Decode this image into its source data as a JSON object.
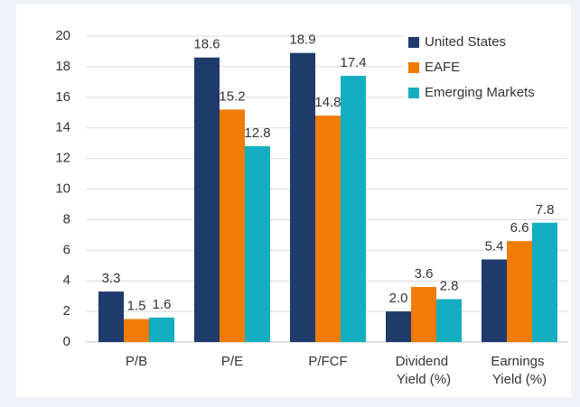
{
  "chart_data": {
    "type": "bar",
    "categories": [
      "P/B",
      "P/E",
      "P/FCF",
      "Dividend Yield (%)",
      "Earnings Yield (%)"
    ],
    "series": [
      {
        "name": "United States",
        "color": "#1f3b6b",
        "values": [
          3.3,
          18.6,
          18.9,
          2.0,
          5.4
        ],
        "value_labels": [
          "3.3",
          "18.6",
          "18.9",
          "2.0",
          "5.4"
        ]
      },
      {
        "name": "EAFE",
        "color": "#f07b05",
        "values": [
          1.5,
          15.2,
          14.8,
          3.6,
          6.6
        ],
        "value_labels": [
          "1.5",
          "15.2",
          "14.8",
          "3.6",
          "6.6"
        ]
      },
      {
        "name": "Emerging Markets",
        "color": "#13aebf",
        "values": [
          1.6,
          12.8,
          17.4,
          2.8,
          7.8
        ],
        "value_labels": [
          "1.6",
          "12.8",
          "17.4",
          "2.8",
          "7.8"
        ]
      }
    ],
    "ylim": [
      0,
      20
    ],
    "yticks": [
      0,
      2,
      4,
      6,
      8,
      10,
      12,
      14,
      16,
      18,
      20
    ],
    "grid": true,
    "legend": "upper right"
  }
}
